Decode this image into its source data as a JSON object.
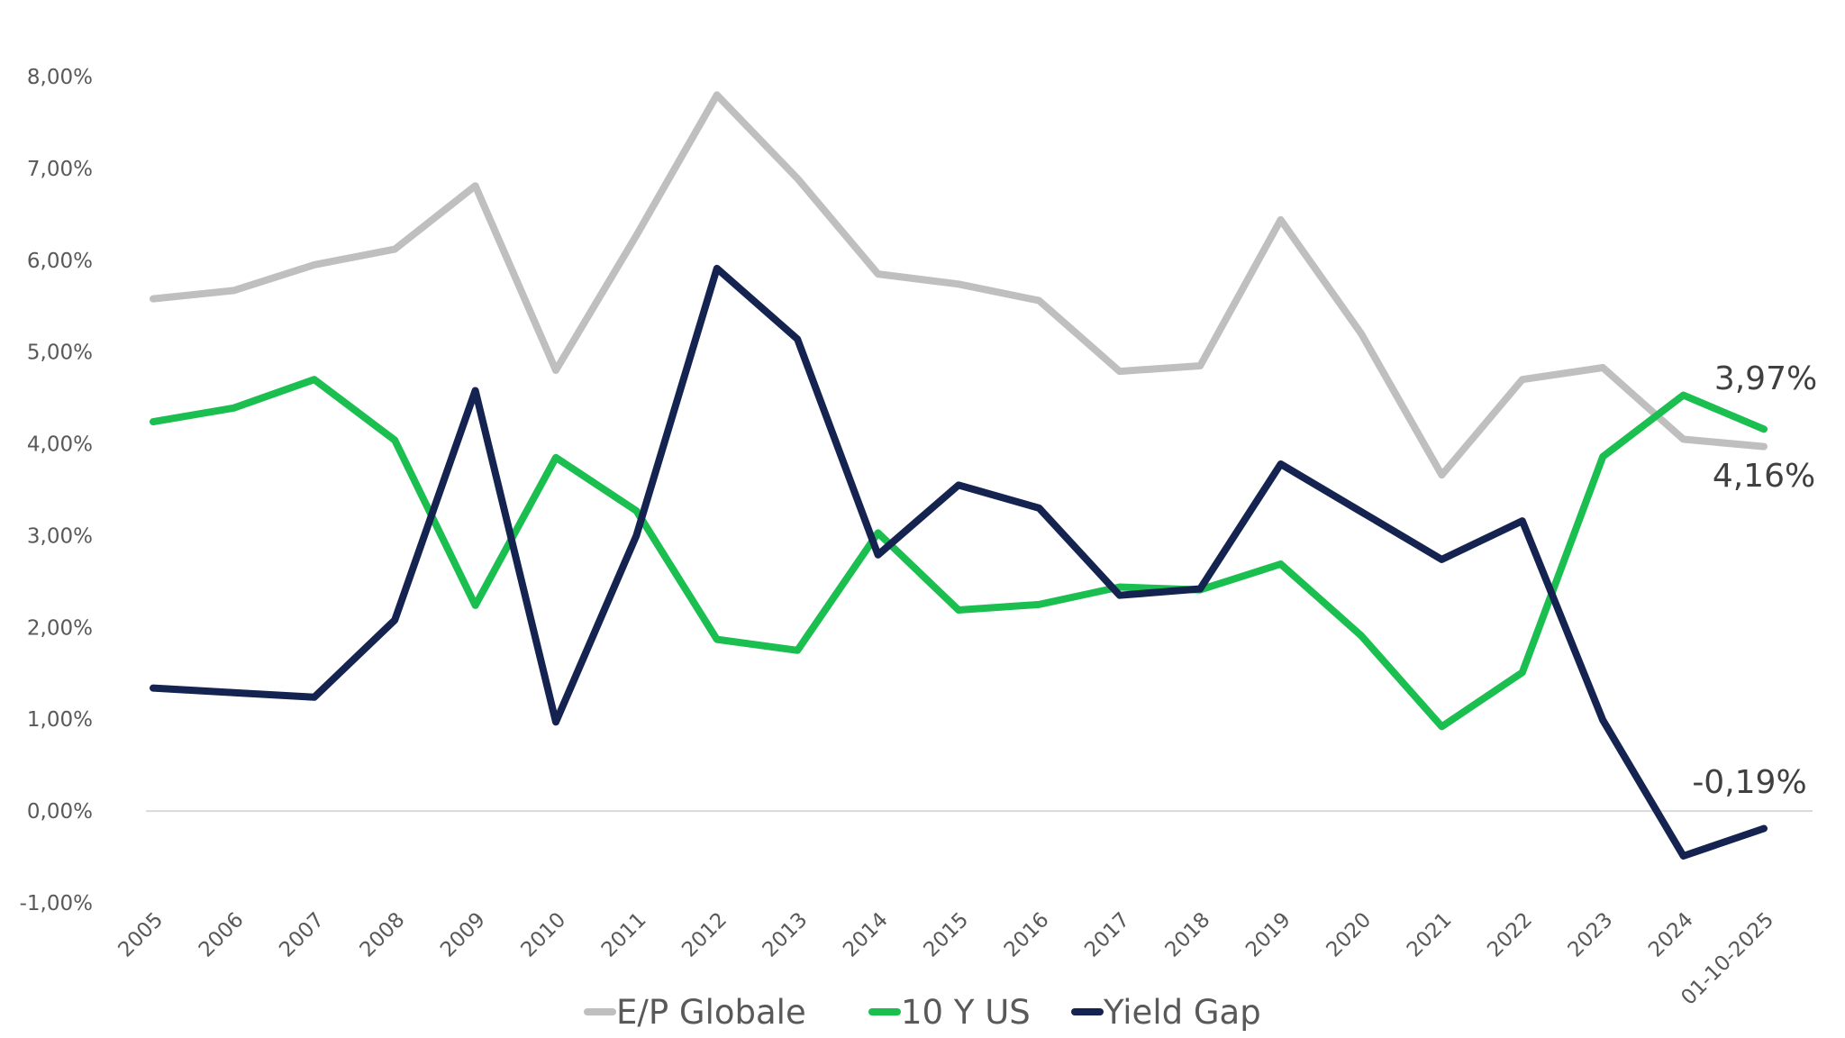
{
  "chart_data": {
    "type": "line",
    "title": "",
    "xlabel": "",
    "ylabel": "",
    "categories": [
      "2005",
      "2006",
      "2007",
      "2008",
      "2009",
      "2010",
      "2011",
      "2012",
      "2013",
      "2014",
      "2015",
      "2016",
      "2017",
      "2018",
      "2019",
      "2020",
      "2021",
      "2022",
      "2023",
      "2024",
      "01-10-2025"
    ],
    "ylim": [
      -1,
      8
    ],
    "yticks": [
      -1,
      0,
      1,
      2,
      3,
      4,
      5,
      6,
      7,
      8
    ],
    "ytick_labels": [
      "-1,00%",
      "0,00%",
      "1,00%",
      "2,00%",
      "3,00%",
      "4,00%",
      "5,00%",
      "6,00%",
      "7,00%",
      "8,00%"
    ],
    "grid": "zero-line only",
    "legend_position": "bottom",
    "series": [
      {
        "name": "E/P Globale",
        "color": "#bfbfbf",
        "values": [
          5.58,
          5.67,
          5.95,
          6.12,
          6.81,
          4.8,
          6.27,
          7.8,
          6.89,
          5.85,
          5.74,
          5.56,
          4.79,
          4.85,
          6.44,
          5.2,
          3.66,
          4.7,
          4.83,
          4.05,
          3.97
        ]
      },
      {
        "name": "10 Y US",
        "color": "#1abf4f",
        "values": [
          4.24,
          4.39,
          4.7,
          4.04,
          2.24,
          3.85,
          3.27,
          1.87,
          1.75,
          3.03,
          2.19,
          2.25,
          2.44,
          2.41,
          2.69,
          1.91,
          0.92,
          1.51,
          3.86,
          4.53,
          4.16
        ]
      },
      {
        "name": "Yield Gap",
        "color": "#14234f",
        "values": [
          1.34,
          1.29,
          1.24,
          2.08,
          4.58,
          0.97,
          3.0,
          5.91,
          5.14,
          2.79,
          3.55,
          3.3,
          2.35,
          2.42,
          3.78,
          3.26,
          2.74,
          3.16,
          0.99,
          -0.49,
          -0.19
        ]
      }
    ],
    "annotations": [
      {
        "text": "3,97%",
        "near_series": "10 Y US",
        "placement": "above last point"
      },
      {
        "text": "4,16%",
        "near_series": "E/P Globale",
        "placement": "below last point"
      },
      {
        "text": "-0,19%",
        "near_series": "Yield Gap",
        "placement": "above last point"
      }
    ]
  }
}
